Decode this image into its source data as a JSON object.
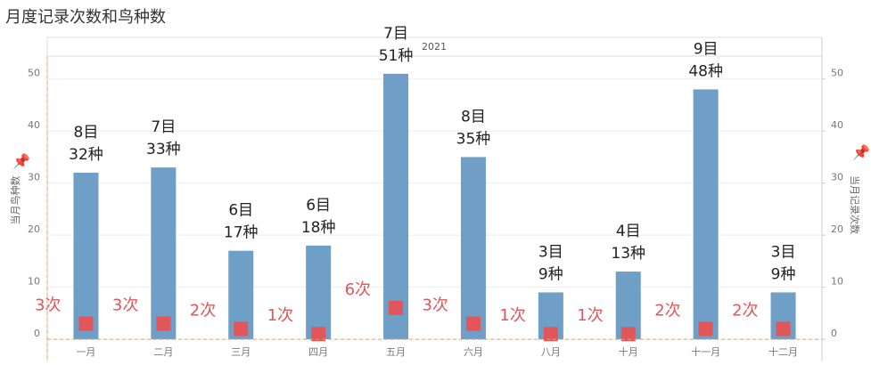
{
  "chart_data": {
    "type": "bar",
    "title": "月度记录次数和鸟种数",
    "header": "2021",
    "categories": [
      "一月",
      "二月",
      "三月",
      "四月",
      "五月",
      "六月",
      "八月",
      "十月",
      "十一月",
      "十二月"
    ],
    "order_labels": [
      "8目",
      "7目",
      "6目",
      "6目",
      "7目",
      "8目",
      "3目",
      "4目",
      "9目",
      "3目"
    ],
    "series": [
      {
        "name": "当月鸟种数",
        "color": "#6f9ec7",
        "values": [
          32,
          33,
          17,
          18,
          51,
          35,
          9,
          13,
          48,
          9
        ],
        "value_labels": [
          "32种",
          "33种",
          "17种",
          "18种",
          "51种",
          "35种",
          "9种",
          "13种",
          "48种",
          "9种"
        ]
      },
      {
        "name": "当月记录次数",
        "color": "#e15759",
        "axis": "y2",
        "values": [
          3,
          3,
          2,
          1,
          6,
          3,
          1,
          1,
          2,
          2
        ],
        "value_labels": [
          "3次",
          "3次",
          "2次",
          "1次",
          "6次",
          "3次",
          "1次",
          "1次",
          "2次",
          "2次"
        ]
      }
    ],
    "ylabel": "当月鸟种数",
    "y2label": "当月记录次数",
    "ylim": [
      -0.5,
      54.4
    ],
    "yticks": [
      0,
      10,
      20,
      30,
      40,
      50
    ],
    "y2lim": [
      -0.5,
      54.4
    ],
    "y2ticks": [
      0,
      10,
      20,
      30,
      40,
      50
    ],
    "grid": true
  }
}
